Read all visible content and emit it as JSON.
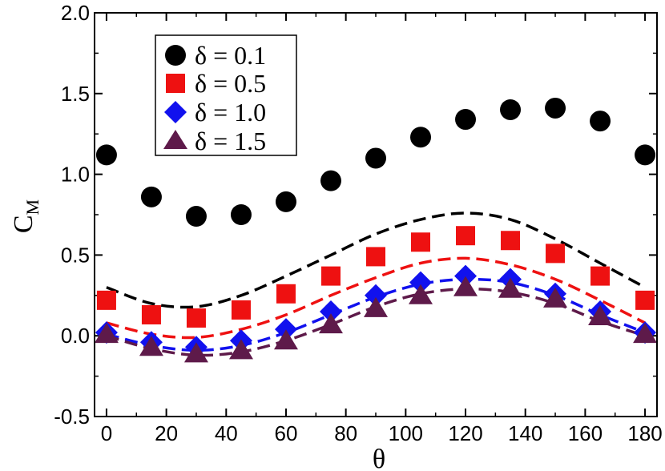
{
  "chart_data": {
    "type": "scatter",
    "xlabel": "θ",
    "ylabel_main": "C",
    "ylabel_sub": "M",
    "xlim": [
      -4,
      184
    ],
    "ylim": [
      -0.5,
      2.0
    ],
    "xticks": [
      0,
      20,
      40,
      60,
      80,
      100,
      120,
      140,
      160,
      180
    ],
    "xtick_labels": [
      "0",
      "20",
      "40",
      "60",
      "80",
      "100",
      "120",
      "140",
      "160",
      "180"
    ],
    "yticks": [
      -0.5,
      0.0,
      0.5,
      1.0,
      1.5,
      2.0
    ],
    "ytick_labels": [
      "-0.5",
      "0.0",
      "0.5",
      "1.0",
      "1.5",
      "2.0"
    ],
    "legend_position": "top-left",
    "x": [
      0,
      15,
      30,
      45,
      60,
      75,
      90,
      105,
      120,
      135,
      150,
      165,
      180
    ],
    "series": [
      {
        "name": "δ = 0.1",
        "marker": "circle",
        "color": "#000000",
        "values": [
          1.12,
          0.86,
          0.74,
          0.75,
          0.83,
          0.96,
          1.1,
          1.23,
          1.34,
          1.4,
          1.41,
          1.33,
          1.12
        ],
        "dashed_line": [
          0.3,
          0.2,
          0.18,
          0.25,
          0.37,
          0.5,
          0.63,
          0.72,
          0.76,
          0.72,
          0.6,
          0.45,
          0.3
        ]
      },
      {
        "name": "δ = 0.5",
        "marker": "square",
        "color": "#ee1111",
        "values": [
          0.22,
          0.13,
          0.11,
          0.16,
          0.26,
          0.37,
          0.49,
          0.58,
          0.62,
          0.59,
          0.51,
          0.37,
          0.22
        ],
        "dashed_line": [
          0.08,
          0.01,
          -0.01,
          0.04,
          0.13,
          0.25,
          0.36,
          0.45,
          0.48,
          0.44,
          0.35,
          0.22,
          0.08
        ]
      },
      {
        "name": "δ = 1.0",
        "marker": "diamond",
        "color": "#1111ee",
        "values": [
          0.02,
          -0.04,
          -0.07,
          -0.03,
          0.04,
          0.15,
          0.25,
          0.33,
          0.37,
          0.35,
          0.26,
          0.15,
          0.02
        ],
        "dashed_line": [
          0.01,
          -0.06,
          -0.09,
          -0.06,
          0.02,
          0.13,
          0.24,
          0.32,
          0.35,
          0.33,
          0.25,
          0.13,
          0.02
        ]
      },
      {
        "name": "δ = 1.5",
        "marker": "triangle",
        "color": "#5e1a4a",
        "values": [
          0.01,
          -0.07,
          -0.11,
          -0.09,
          -0.03,
          0.07,
          0.17,
          0.25,
          0.3,
          0.29,
          0.23,
          0.12,
          0.01
        ],
        "dashed_line": [
          0.0,
          -0.08,
          -0.12,
          -0.1,
          -0.03,
          0.07,
          0.18,
          0.26,
          0.29,
          0.27,
          0.2,
          0.09,
          0.0
        ]
      }
    ]
  }
}
